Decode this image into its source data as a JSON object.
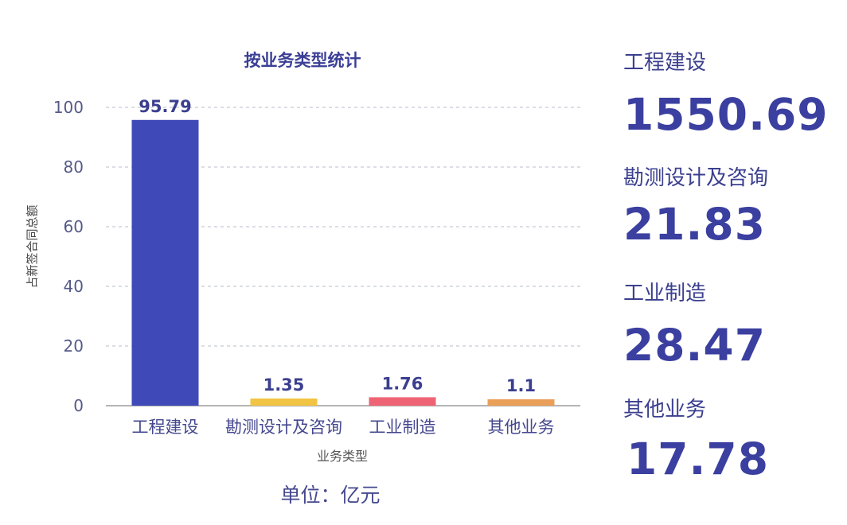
{
  "chart_data": {
    "type": "bar",
    "title": "按业务类型统计",
    "xlabel": "业务类型",
    "ylabel": "占新签合同总额",
    "categories": [
      "工程建设",
      "勘测设计及咨询",
      "工业制造",
      "其他业务"
    ],
    "values": [
      95.79,
      1.35,
      1.76,
      1.1
    ],
    "value_labels": [
      "95.79",
      "1.35",
      "1.76",
      "1.1"
    ],
    "colors": [
      "#3f4ab8",
      "#f2c443",
      "#ee6474",
      "#ea9f58"
    ],
    "ylim": [
      0,
      100
    ],
    "yticks": [
      "0",
      "20",
      "40",
      "60",
      "80",
      "100"
    ],
    "grid": true
  },
  "unit_label": "单位：亿元",
  "summary": [
    {
      "label": "工程建设",
      "value": "1550.69"
    },
    {
      "label": "勘测设计及咨询",
      "value": "21.83"
    },
    {
      "label": "工业制造",
      "value": "28.47"
    },
    {
      "label": "其他业务",
      "value": "17.78"
    }
  ]
}
